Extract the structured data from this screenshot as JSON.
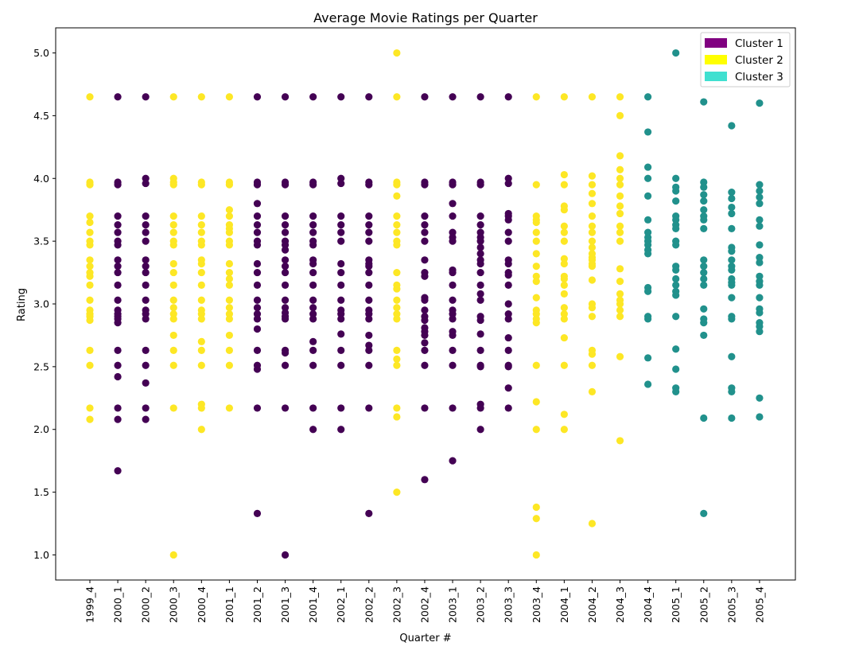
{
  "chart_data": {
    "type": "scatter",
    "title": "Average Movie Ratings per Quarter",
    "xlabel": "Quarter #",
    "ylabel": "Rating",
    "ylim": [
      0.8,
      5.2
    ],
    "yticks": [
      1.0,
      1.5,
      2.0,
      2.5,
      3.0,
      3.5,
      4.0,
      4.5,
      5.0
    ],
    "grid": false,
    "legend_position": "top-right",
    "categories": [
      "1999_4",
      "2000_1",
      "2000_2",
      "2000_3",
      "2000_4",
      "2001_1",
      "2001_2",
      "2001_3",
      "2001_4",
      "2002_1",
      "2002_2",
      "2002_3",
      "2002_4",
      "2003_1",
      "2003_2",
      "2003_3",
      "2003_4",
      "2004_1",
      "2004_2",
      "2004_3",
      "2004_4",
      "2005_1",
      "2005_2",
      "2005_3",
      "2005_4"
    ],
    "cluster_colors": {
      "1": "#440154",
      "2": "#fde725",
      "3": "#21918c"
    },
    "legend": [
      {
        "label": "Cluster 1",
        "color": "#800080"
      },
      {
        "label": "Cluster 2",
        "color": "#ffff00"
      },
      {
        "label": "Cluster 3",
        "color": "#40e0d0"
      }
    ],
    "series": [
      {
        "cluster": 2,
        "values": [
          4.65,
          3.97,
          3.95,
          3.7,
          3.65,
          3.57,
          3.5,
          3.47,
          3.35,
          3.3,
          3.25,
          3.22,
          3.15,
          3.03,
          2.95,
          2.92,
          2.9,
          2.87,
          2.63,
          2.51,
          2.17,
          2.08
        ]
      },
      {
        "cluster": 1,
        "values": [
          4.65,
          3.97,
          3.95,
          3.7,
          3.63,
          3.57,
          3.5,
          3.47,
          3.35,
          3.3,
          3.25,
          3.15,
          3.03,
          2.95,
          2.92,
          2.9,
          2.88,
          2.85,
          2.63,
          2.51,
          2.42,
          2.17,
          2.08,
          1.67
        ]
      },
      {
        "cluster": 1,
        "values": [
          4.65,
          4.0,
          3.96,
          3.7,
          3.63,
          3.57,
          3.5,
          3.35,
          3.3,
          3.25,
          3.15,
          3.03,
          2.95,
          2.92,
          2.88,
          2.63,
          2.51,
          2.37,
          2.17,
          2.08
        ]
      },
      {
        "cluster": 2,
        "values": [
          4.65,
          4.0,
          3.97,
          3.95,
          3.7,
          3.63,
          3.57,
          3.5,
          3.47,
          3.32,
          3.25,
          3.15,
          3.03,
          2.97,
          2.92,
          2.88,
          2.75,
          2.63,
          2.51,
          2.17,
          1.0
        ]
      },
      {
        "cluster": 2,
        "values": [
          4.65,
          3.97,
          3.95,
          3.7,
          3.63,
          3.57,
          3.5,
          3.47,
          3.35,
          3.32,
          3.25,
          3.15,
          3.03,
          2.95,
          2.92,
          2.88,
          2.7,
          2.63,
          2.51,
          2.2,
          2.17,
          2.0
        ]
      },
      {
        "cluster": 2,
        "values": [
          4.65,
          3.97,
          3.95,
          3.75,
          3.7,
          3.63,
          3.6,
          3.57,
          3.5,
          3.47,
          3.32,
          3.25,
          3.2,
          3.15,
          3.03,
          2.97,
          2.92,
          2.88,
          2.75,
          2.63,
          2.51,
          2.17
        ]
      },
      {
        "cluster": 1,
        "values": [
          4.65,
          3.97,
          3.95,
          3.8,
          3.7,
          3.63,
          3.57,
          3.5,
          3.47,
          3.32,
          3.25,
          3.15,
          3.03,
          2.97,
          2.92,
          2.88,
          2.8,
          2.63,
          2.51,
          2.48,
          2.17,
          1.33
        ]
      },
      {
        "cluster": 1,
        "values": [
          4.65,
          3.97,
          3.95,
          3.7,
          3.63,
          3.57,
          3.5,
          3.47,
          3.43,
          3.35,
          3.3,
          3.25,
          3.15,
          3.03,
          2.97,
          2.93,
          2.9,
          2.88,
          2.63,
          2.61,
          2.51,
          2.17,
          1.0
        ]
      },
      {
        "cluster": 1,
        "values": [
          4.65,
          3.97,
          3.95,
          3.7,
          3.63,
          3.57,
          3.5,
          3.47,
          3.35,
          3.32,
          3.25,
          3.15,
          3.03,
          2.97,
          2.92,
          2.88,
          2.7,
          2.63,
          2.51,
          2.17,
          2.0
        ]
      },
      {
        "cluster": 1,
        "values": [
          4.65,
          4.0,
          3.96,
          3.7,
          3.63,
          3.57,
          3.5,
          3.32,
          3.25,
          3.15,
          3.03,
          2.95,
          2.92,
          2.88,
          2.76,
          2.63,
          2.51,
          2.17,
          2.0
        ]
      },
      {
        "cluster": 1,
        "values": [
          4.65,
          3.97,
          3.95,
          3.7,
          3.63,
          3.57,
          3.5,
          3.35,
          3.32,
          3.3,
          3.25,
          3.15,
          3.03,
          2.95,
          2.92,
          2.88,
          2.75,
          2.67,
          2.63,
          2.51,
          2.17,
          1.33
        ]
      },
      {
        "cluster": 2,
        "values": [
          5.0,
          4.65,
          3.97,
          3.95,
          3.86,
          3.7,
          3.63,
          3.57,
          3.5,
          3.47,
          3.25,
          3.15,
          3.12,
          3.03,
          2.97,
          2.92,
          2.88,
          2.63,
          2.56,
          2.51,
          2.17,
          2.1,
          1.5
        ]
      },
      {
        "cluster": 1,
        "values": [
          4.65,
          3.97,
          3.95,
          3.7,
          3.63,
          3.57,
          3.5,
          3.35,
          3.25,
          3.22,
          3.05,
          3.03,
          2.95,
          2.9,
          2.87,
          2.81,
          2.78,
          2.75,
          2.69,
          2.63,
          2.51,
          2.17,
          1.6
        ]
      },
      {
        "cluster": 1,
        "values": [
          4.65,
          3.97,
          3.95,
          3.8,
          3.7,
          3.57,
          3.53,
          3.5,
          3.27,
          3.25,
          3.15,
          3.03,
          2.95,
          2.92,
          2.88,
          2.78,
          2.75,
          2.63,
          2.51,
          2.17,
          1.75
        ]
      },
      {
        "cluster": 1,
        "values": [
          4.65,
          3.97,
          3.95,
          3.7,
          3.63,
          3.57,
          3.53,
          3.5,
          3.45,
          3.4,
          3.35,
          3.32,
          3.25,
          3.15,
          3.08,
          3.03,
          2.9,
          2.87,
          2.76,
          2.63,
          2.51,
          2.5,
          2.2,
          2.17,
          2.0
        ]
      },
      {
        "cluster": 1,
        "values": [
          4.65,
          4.0,
          3.96,
          3.72,
          3.7,
          3.67,
          3.57,
          3.5,
          3.35,
          3.32,
          3.25,
          3.23,
          3.15,
          3.0,
          2.92,
          2.88,
          2.73,
          2.63,
          2.51,
          2.5,
          2.33,
          2.17
        ]
      },
      {
        "cluster": 2,
        "values": [
          4.65,
          3.95,
          3.7,
          3.67,
          3.65,
          3.57,
          3.5,
          3.4,
          3.3,
          3.22,
          3.18,
          3.05,
          2.95,
          2.92,
          2.88,
          2.85,
          2.51,
          2.22,
          2.0,
          1.38,
          1.29,
          1.0
        ]
      },
      {
        "cluster": 2,
        "values": [
          4.65,
          4.03,
          3.95,
          3.78,
          3.75,
          3.62,
          3.57,
          3.5,
          3.36,
          3.32,
          3.22,
          3.2,
          3.15,
          3.08,
          2.97,
          2.92,
          2.88,
          2.73,
          2.51,
          2.12,
          2.0
        ]
      },
      {
        "cluster": 2,
        "values": [
          4.65,
          4.02,
          3.95,
          3.88,
          3.8,
          3.7,
          3.62,
          3.57,
          3.5,
          3.45,
          3.4,
          3.37,
          3.35,
          3.32,
          3.3,
          3.19,
          3.0,
          2.97,
          2.9,
          2.63,
          2.6,
          2.51,
          2.3,
          1.25
        ]
      },
      {
        "cluster": 2,
        "values": [
          4.65,
          4.5,
          4.18,
          4.07,
          4.0,
          3.95,
          3.86,
          3.78,
          3.72,
          3.62,
          3.57,
          3.5,
          3.28,
          3.18,
          3.08,
          3.03,
          3.0,
          2.95,
          2.9,
          2.58,
          1.91
        ]
      },
      {
        "cluster": 3,
        "values": [
          4.65,
          4.37,
          4.09,
          4.0,
          3.86,
          3.67,
          3.57,
          3.53,
          3.5,
          3.47,
          3.43,
          3.4,
          3.13,
          3.1,
          2.9,
          2.88,
          2.57,
          2.36
        ]
      },
      {
        "cluster": 3,
        "values": [
          5.0,
          4.0,
          3.93,
          3.9,
          3.82,
          3.7,
          3.67,
          3.63,
          3.6,
          3.5,
          3.47,
          3.3,
          3.27,
          3.2,
          3.15,
          3.1,
          3.07,
          2.9,
          2.64,
          2.48,
          2.33,
          2.3
        ]
      },
      {
        "cluster": 3,
        "values": [
          4.61,
          3.97,
          3.93,
          3.87,
          3.82,
          3.75,
          3.7,
          3.67,
          3.6,
          3.35,
          3.3,
          3.25,
          3.2,
          3.15,
          2.96,
          2.88,
          2.85,
          2.75,
          2.09,
          1.33
        ]
      },
      {
        "cluster": 3,
        "values": [
          4.42,
          3.89,
          3.84,
          3.77,
          3.72,
          3.6,
          3.45,
          3.42,
          3.35,
          3.3,
          3.27,
          3.2,
          3.17,
          3.15,
          3.05,
          2.9,
          2.88,
          2.58,
          2.33,
          2.3,
          2.09
        ]
      },
      {
        "cluster": 3,
        "values": [
          4.6,
          3.95,
          3.9,
          3.85,
          3.8,
          3.67,
          3.62,
          3.47,
          3.37,
          3.33,
          3.22,
          3.18,
          3.15,
          3.05,
          2.96,
          2.93,
          2.85,
          2.82,
          2.78,
          2.25,
          2.1
        ]
      }
    ]
  }
}
